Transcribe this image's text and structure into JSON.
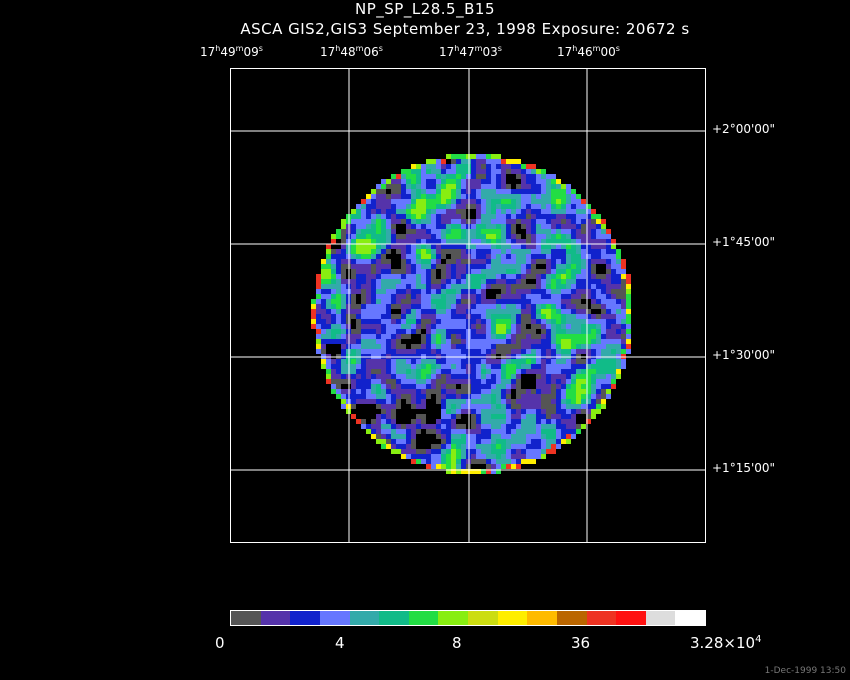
{
  "header": {
    "title": "NP_SP_L28.5_B15",
    "subtitle": "ASCA GIS2,GIS3 September 23, 1998 Exposure: 20672 s"
  },
  "ra_labels": [
    {
      "h": "17",
      "m": "49",
      "s": "09"
    },
    {
      "h": "17",
      "m": "48",
      "s": "06"
    },
    {
      "h": "17",
      "m": "47",
      "s": "03"
    },
    {
      "h": "17",
      "m": "46",
      "s": "00"
    }
  ],
  "dec_labels": [
    "+2°00'00\"",
    "+1°45'00\"",
    "+1°30'00\"",
    "+1°15'00\""
  ],
  "colorbar": {
    "colors": [
      "#555555",
      "#5533aa",
      "#1122cc",
      "#6677ff",
      "#33aaaa",
      "#11bb88",
      "#22dd44",
      "#88ee11",
      "#ccdd11",
      "#ffee00",
      "#ffbb00",
      "#bb6600",
      "#ee3322",
      "#ff1111",
      "#dddddd",
      "#ffffff"
    ],
    "labels": [
      "0",
      "4",
      "8",
      "36"
    ],
    "max_mantissa": "3.28",
    "max_exp": "4",
    "max_sep": "×10"
  },
  "timestamp": "1-Dec-1999 13:50"
}
